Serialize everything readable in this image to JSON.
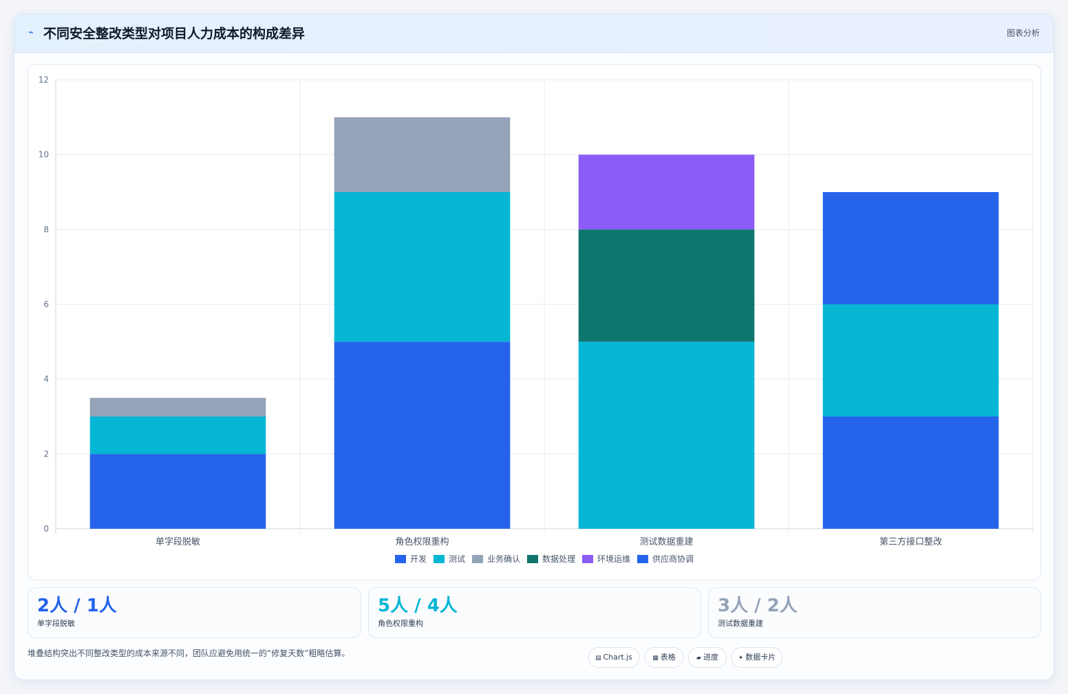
{
  "header": {
    "icon": "trend-line-icon",
    "title": "不同安全整改类型对项目人力成本的构成差异",
    "badge": "图表分析"
  },
  "chart_data": {
    "type": "bar",
    "stacked": true,
    "categories": [
      "单字段脱敏",
      "角色权限重构",
      "测试数据重建",
      "第三方接口整改"
    ],
    "series": [
      {
        "name": "开发",
        "color": "#2563eb",
        "values": [
          2,
          5,
          0,
          3
        ]
      },
      {
        "name": "测试",
        "color": "#06b6d4",
        "values": [
          1,
          4,
          5,
          3
        ]
      },
      {
        "name": "业务确认",
        "color": "#94a3b8",
        "values": [
          0.5,
          2,
          0,
          0
        ]
      },
      {
        "name": "数据处理",
        "color": "#0f766e",
        "values": [
          0,
          0,
          3,
          0
        ]
      },
      {
        "name": "环境运维",
        "color": "#8b5cf6",
        "values": [
          0,
          0,
          2,
          0
        ]
      },
      {
        "name": "供应商协调",
        "color": "#2563eb",
        "values": [
          0,
          0,
          0,
          3
        ]
      }
    ],
    "ylim": [
      0,
      12
    ],
    "yticks": [
      0,
      2,
      4,
      6,
      8,
      10,
      12
    ],
    "grid": true,
    "legend": "bottom-center"
  },
  "stats": [
    {
      "value": "2人 / 1人",
      "label": "单字段脱敏",
      "color": "#2563eb"
    },
    {
      "value": "5人 / 4人",
      "label": "角色权限重构",
      "color": "#06b6d4"
    },
    {
      "value": "3人 / 2人",
      "label": "测试数据重建",
      "color": "#94a3b8"
    }
  ],
  "footnote": "堆叠结构突出不同整改类型的成本来源不同，团队应避免用统一的“修复天数”粗略估算。",
  "pills": [
    {
      "icon": "chart-icon",
      "glyph": "▤",
      "label": "Chart.js"
    },
    {
      "icon": "table-icon",
      "glyph": "▦",
      "label": "表格"
    },
    {
      "icon": "progress-icon",
      "glyph": "▰",
      "label": "进度"
    },
    {
      "icon": "sparkle-icon",
      "glyph": "✦",
      "label": "数据卡片"
    }
  ]
}
